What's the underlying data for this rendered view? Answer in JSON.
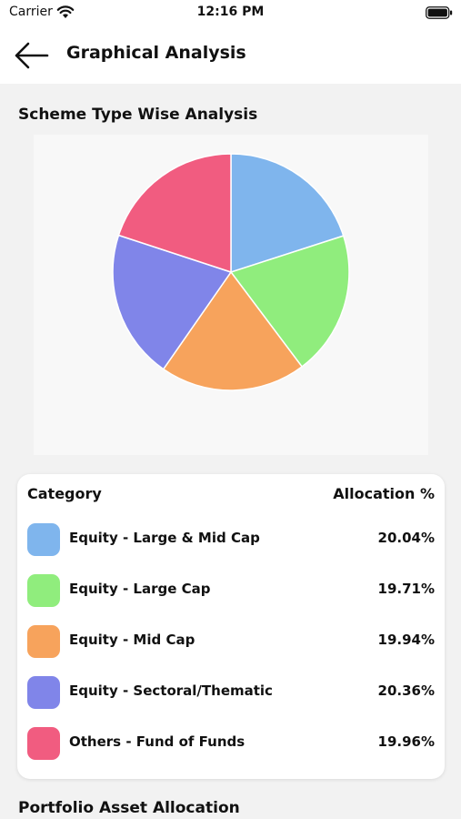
{
  "status_bar": {
    "carrier": "Carrier",
    "time": "12:16 PM"
  },
  "header": {
    "title": "Graphical Analysis"
  },
  "sections": {
    "scheme_title": "Scheme Type Wise Analysis",
    "portfolio_title": "Portfolio Asset Allocation"
  },
  "table": {
    "col_category": "Category",
    "col_allocation": "Allocation %",
    "rows": [
      {
        "label": "Equity - Large & Mid Cap",
        "value": "20.04%",
        "color": "#7fb5ed"
      },
      {
        "label": "Equity - Large Cap",
        "value": "19.71%",
        "color": "#90ed7d"
      },
      {
        "label": "Equity - Mid Cap",
        "value": "19.94%",
        "color": "#f7a35c"
      },
      {
        "label": "Equity - Sectoral/Thematic",
        "value": "20.36%",
        "color": "#8085e9"
      },
      {
        "label": "Others - Fund of Funds",
        "value": "19.96%",
        "color": "#f15c80"
      }
    ]
  },
  "chart_data": {
    "type": "pie",
    "categories": [
      "Equity - Large & Mid Cap",
      "Equity - Large Cap",
      "Equity - Mid Cap",
      "Equity - Sectoral/Thematic",
      "Others - Fund of Funds"
    ],
    "values": [
      20.04,
      19.71,
      19.94,
      20.36,
      19.96
    ],
    "colors": [
      "#7fb5ed",
      "#90ed7d",
      "#f7a35c",
      "#8085e9",
      "#f15c80"
    ]
  }
}
